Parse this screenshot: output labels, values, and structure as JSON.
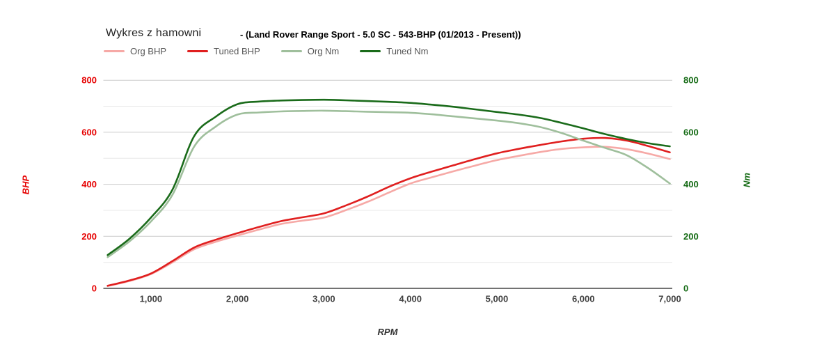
{
  "chart_data": {
    "type": "line",
    "title": "Wykres z hamowni",
    "subtitle": "- (Land Rover Range Sport - 5.0 SC - 543-BHP (01/2013 - Present))",
    "xlabel": "RPM",
    "legend_position": "top-left",
    "grid": {
      "shown": true,
      "minor_step": 100,
      "major_color": "#cccccc",
      "minor_color": "#e8e8e8",
      "axis_color": "#444444"
    },
    "xlim": [
      450,
      7000
    ],
    "ylim": [
      0,
      800
    ],
    "x_ticks": [
      1000,
      2000,
      3000,
      4000,
      5000,
      6000,
      7000
    ],
    "y_axis_left": {
      "label": "BHP",
      "color": "#e60000",
      "ticks": [
        0,
        200,
        400,
        600,
        800
      ]
    },
    "y_axis_right": {
      "label": "Nm",
      "color": "#156b15",
      "ticks": [
        0,
        200,
        400,
        600,
        800
      ]
    },
    "x": [
      500,
      750,
      1000,
      1250,
      1500,
      1750,
      2000,
      2250,
      2500,
      2750,
      3000,
      3250,
      3500,
      3750,
      4000,
      4250,
      4500,
      4750,
      5000,
      5250,
      5500,
      5750,
      6000,
      6250,
      6500,
      6750,
      7000
    ],
    "series": [
      {
        "name": "Org BHP",
        "axis": "left",
        "color": "#f6a9a6",
        "values": [
          9,
          28,
          55,
          100,
          150,
          179,
          203,
          226,
          247,
          260,
          272,
          300,
          332,
          368,
          403,
          427,
          450,
          472,
          493,
          509,
          524,
          536,
          542,
          544,
          535,
          518,
          497
        ]
      },
      {
        "name": "Tuned BHP",
        "axis": "left",
        "color": "#e01f1f",
        "values": [
          10,
          30,
          57,
          105,
          157,
          187,
          212,
          236,
          258,
          273,
          288,
          318,
          352,
          390,
          423,
          449,
          473,
          497,
          519,
          536,
          551,
          565,
          575,
          578,
          568,
          547,
          523
        ]
      },
      {
        "name": "Org Nm",
        "axis": "right",
        "color": "#9fbf9c",
        "values": [
          120,
          180,
          257,
          360,
          545,
          622,
          668,
          676,
          680,
          682,
          683,
          681,
          679,
          677,
          675,
          669,
          661,
          653,
          645,
          635,
          620,
          597,
          568,
          540,
          512,
          462,
          403
        ]
      },
      {
        "name": "Tuned Nm",
        "axis": "right",
        "color": "#1a6b1a",
        "values": [
          128,
          190,
          272,
          380,
          585,
          660,
          708,
          718,
          722,
          724,
          725,
          723,
          720,
          717,
          713,
          706,
          698,
          688,
          678,
          668,
          655,
          636,
          615,
          593,
          574,
          558,
          546
        ]
      }
    ]
  }
}
